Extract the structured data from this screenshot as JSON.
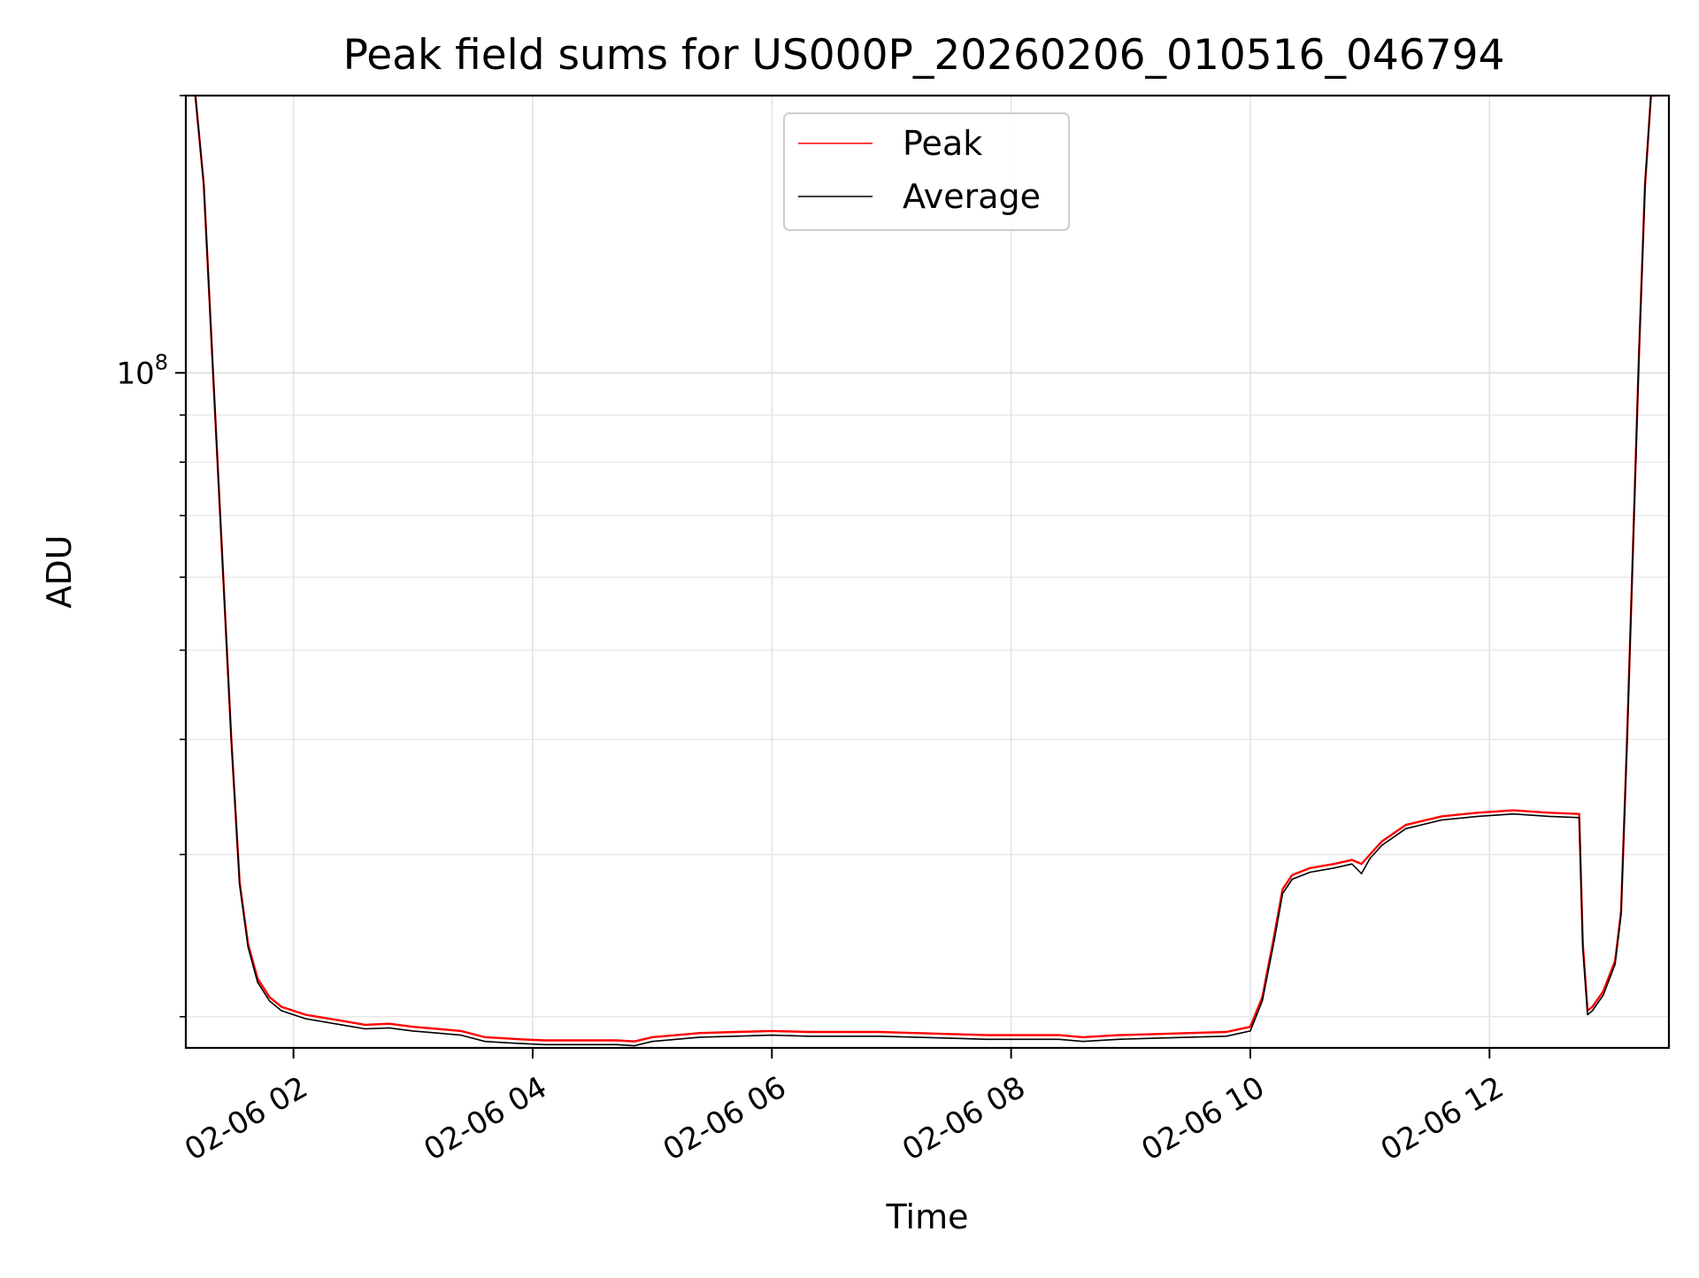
{
  "chart_data": {
    "type": "line",
    "title": "Peak field sums for US000P_20260206_010516_046794",
    "xlabel": "Time",
    "ylabel": "ADU",
    "yscale": "log",
    "xlim": [
      1.1,
      13.5
    ],
    "ylim": [
      18500000,
      200000000
    ],
    "grid": true,
    "legend_position": "top-center",
    "x_ticks": [
      {
        "value": 2,
        "label": "02-06 02"
      },
      {
        "value": 4,
        "label": "02-06 04"
      },
      {
        "value": 6,
        "label": "02-06 06"
      },
      {
        "value": 8,
        "label": "02-06 08"
      },
      {
        "value": 10,
        "label": "02-06 10"
      },
      {
        "value": 12,
        "label": "02-06 12"
      }
    ],
    "y_ticks": [
      {
        "value": 100000000,
        "base": "10",
        "exponent": "8"
      }
    ],
    "y_minor_ticks": [
      20000000,
      30000000,
      40000000,
      50000000,
      60000000,
      70000000,
      80000000,
      90000000,
      200000000
    ],
    "series": [
      {
        "name": "Peak",
        "color": "#ff0000",
        "x": [
          1.18,
          1.25,
          1.32,
          1.4,
          1.48,
          1.55,
          1.62,
          1.7,
          1.8,
          1.9,
          2.0,
          2.1,
          2.2,
          2.4,
          2.6,
          2.8,
          3.0,
          3.2,
          3.4,
          3.5,
          3.6,
          3.75,
          3.9,
          4.1,
          4.3,
          4.5,
          4.7,
          4.85,
          5.0,
          5.2,
          5.4,
          5.7,
          6.0,
          6.3,
          6.6,
          6.9,
          7.2,
          7.5,
          7.8,
          8.1,
          8.4,
          8.6,
          8.9,
          9.2,
          9.5,
          9.8,
          10.0,
          10.1,
          10.2,
          10.27,
          10.35,
          10.5,
          10.7,
          10.85,
          10.93,
          11.0,
          11.1,
          11.3,
          11.6,
          11.9,
          12.2,
          12.5,
          12.75,
          12.78,
          12.82,
          12.86,
          12.95,
          13.05,
          13.1,
          13.15,
          13.2,
          13.25,
          13.3,
          13.35,
          13.4
        ],
        "values": [
          200000000,
          160000000,
          105000000,
          65000000,
          40000000,
          28000000,
          24000000,
          22000000,
          21000000,
          20500000,
          20300000,
          20100000,
          20000000,
          19800000,
          19600000,
          19650000,
          19500000,
          19400000,
          19300000,
          19150000,
          19000000,
          18950000,
          18900000,
          18850000,
          18850000,
          18850000,
          18850000,
          18800000,
          19000000,
          19100000,
          19200000,
          19250000,
          19300000,
          19250000,
          19250000,
          19250000,
          19200000,
          19150000,
          19100000,
          19100000,
          19100000,
          19000000,
          19100000,
          19150000,
          19200000,
          19250000,
          19500000,
          21000000,
          24500000,
          27500000,
          28500000,
          29000000,
          29300000,
          29600000,
          29300000,
          30000000,
          31000000,
          32300000,
          33000000,
          33300000,
          33500000,
          33300000,
          33200000,
          24000000,
          20300000,
          20500000,
          21300000,
          23000000,
          26000000,
          40000000,
          65000000,
          105000000,
          160000000,
          200000000,
          200000000
        ]
      },
      {
        "name": "Average",
        "color": "#000000",
        "x": [
          1.18,
          1.25,
          1.32,
          1.4,
          1.48,
          1.55,
          1.62,
          1.7,
          1.8,
          1.9,
          2.0,
          2.1,
          2.2,
          2.4,
          2.6,
          2.8,
          3.0,
          3.2,
          3.4,
          3.5,
          3.6,
          3.75,
          3.9,
          4.1,
          4.3,
          4.5,
          4.7,
          4.85,
          5.0,
          5.2,
          5.4,
          5.7,
          6.0,
          6.3,
          6.6,
          6.9,
          7.2,
          7.5,
          7.8,
          8.1,
          8.4,
          8.6,
          8.9,
          9.2,
          9.5,
          9.8,
          10.0,
          10.1,
          10.2,
          10.27,
          10.35,
          10.5,
          10.7,
          10.85,
          10.93,
          11.0,
          11.1,
          11.3,
          11.6,
          11.9,
          12.2,
          12.5,
          12.75,
          12.78,
          12.82,
          12.86,
          12.95,
          13.05,
          13.1,
          13.15,
          13.2,
          13.25,
          13.3,
          13.35,
          13.4
        ],
        "values": [
          200000000,
          160000000,
          105000000,
          65000000,
          40000000,
          27800000,
          23800000,
          21800000,
          20800000,
          20300000,
          20100000,
          19900000,
          19800000,
          19600000,
          19400000,
          19450000,
          19300000,
          19200000,
          19100000,
          18950000,
          18800000,
          18750000,
          18700000,
          18650000,
          18650000,
          18650000,
          18650000,
          18600000,
          18800000,
          18900000,
          19000000,
          19050000,
          19100000,
          19050000,
          19050000,
          19050000,
          19000000,
          18950000,
          18900000,
          18900000,
          18900000,
          18800000,
          18900000,
          18950000,
          19000000,
          19050000,
          19300000,
          20800000,
          24200000,
          27200000,
          28200000,
          28700000,
          29000000,
          29300000,
          28600000,
          29700000,
          30700000,
          32000000,
          32700000,
          33000000,
          33200000,
          33000000,
          32900000,
          23700000,
          20100000,
          20300000,
          21100000,
          22800000,
          25800000,
          39800000,
          64800000,
          104800000,
          159800000,
          200000000,
          200000000
        ]
      }
    ]
  }
}
